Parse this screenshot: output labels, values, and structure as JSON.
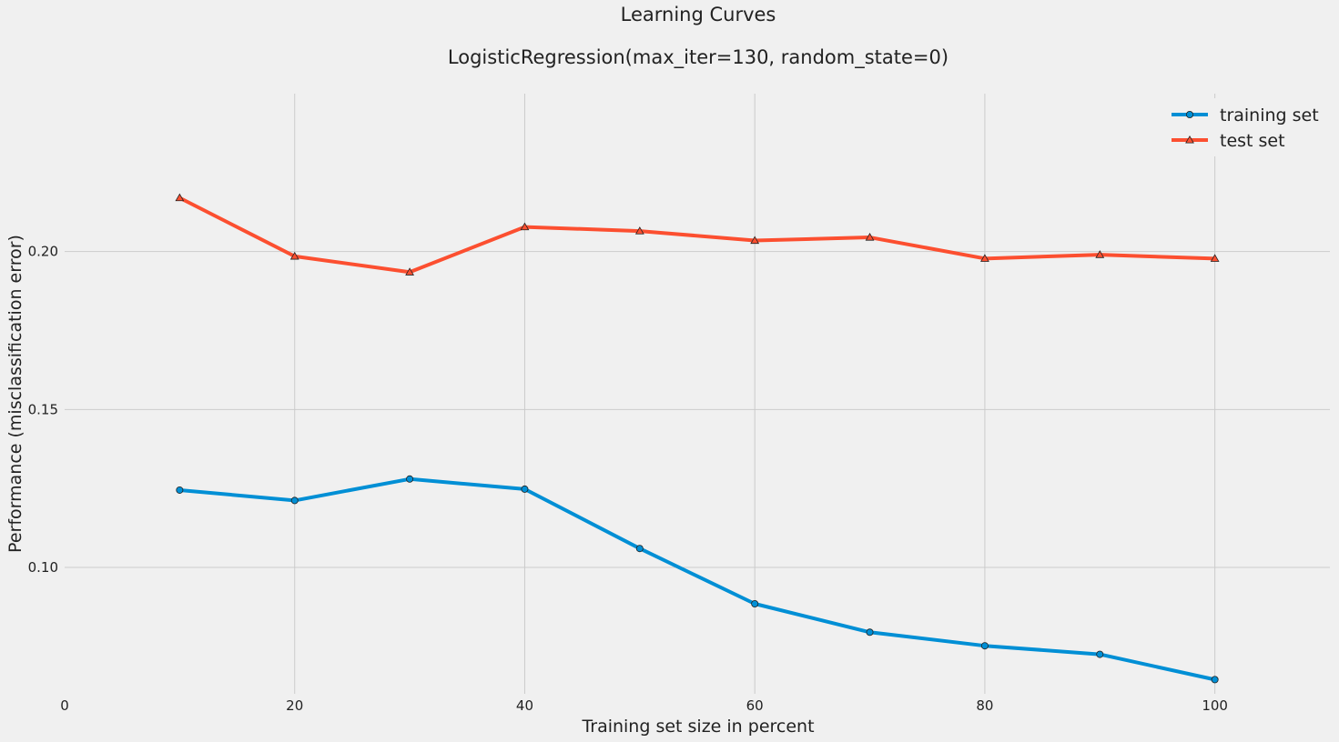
{
  "chart_data": {
    "type": "line",
    "suptitle": "Learning Curves",
    "title": "LogisticRegression(max_iter=130, random_state=0)",
    "xlabel": "Training set size in percent",
    "ylabel": "Performance (misclassification error)",
    "xlim": [
      0,
      110
    ],
    "ylim": [
      0.06,
      0.25
    ],
    "xticks": [
      0,
      20,
      40,
      60,
      80,
      100
    ],
    "xtick_labels": [
      "0",
      "20",
      "40",
      "60",
      "80",
      "100"
    ],
    "yticks": [
      0.1,
      0.15,
      0.2
    ],
    "ytick_labels": [
      "0.10",
      "0.15",
      "0.20"
    ],
    "grid": true,
    "legend_position": "top-right",
    "x": [
      10,
      20,
      30,
      40,
      50,
      60,
      70,
      80,
      90,
      100
    ],
    "series": [
      {
        "name": "training set",
        "color": "#008fd5",
        "marker": "circle",
        "values": [
          0.1245,
          0.1212,
          0.128,
          0.1248,
          0.106,
          0.0885,
          0.0795,
          0.0752,
          0.0725,
          0.0645
        ]
      },
      {
        "name": "test set",
        "color": "#fc4f30",
        "marker": "triangle",
        "values": [
          0.217,
          0.1985,
          0.1935,
          0.2078,
          0.2065,
          0.2035,
          0.2045,
          0.1978,
          0.199,
          0.1978
        ]
      }
    ]
  }
}
